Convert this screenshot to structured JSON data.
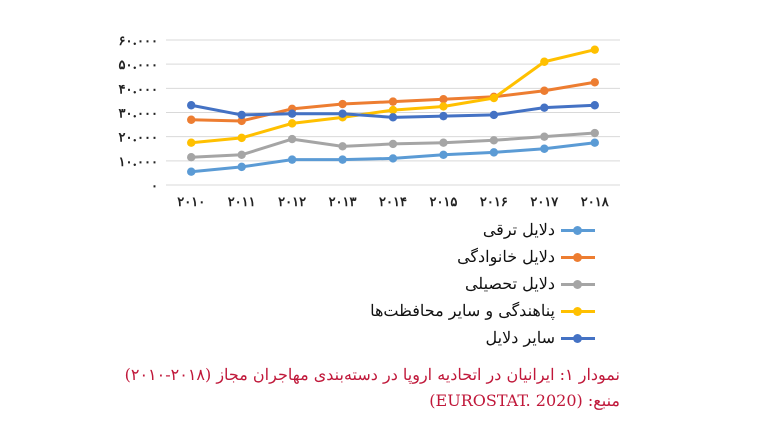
{
  "chart_data": {
    "type": "line",
    "x": [
      "۲۰۱۰",
      "۲۰۱۱",
      "۲۰۱۲",
      "۲۰۱۳",
      "۲۰۱۴",
      "۲۰۱۵",
      "۲۰۱۶",
      "۲۰۱۷",
      "۲۰۱۸"
    ],
    "y_ticks": [
      "۰",
      "۱۰.۰۰۰",
      "۲۰.۰۰۰",
      "۳۰.۰۰۰",
      "۴۰.۰۰۰",
      "۵۰.۰۰۰",
      "۶۰.۰۰۰"
    ],
    "ylim": [
      0,
      60000
    ],
    "grid": true,
    "legend_position": "bottom",
    "series": [
      {
        "name": "دلایل ترقی",
        "color": "#5b9bd5",
        "values": [
          5500,
          7500,
          10500,
          10500,
          11000,
          12500,
          13500,
          15000,
          17500
        ]
      },
      {
        "name": "دلایل خانوادگی",
        "color": "#ed7d31",
        "values": [
          27000,
          26500,
          31500,
          33500,
          34500,
          35500,
          36500,
          39000,
          42500
        ]
      },
      {
        "name": "دلایل تحصیلی",
        "color": "#a5a5a5",
        "values": [
          11500,
          12500,
          19000,
          16000,
          17000,
          17500,
          18500,
          20000,
          21500
        ]
      },
      {
        "name": "پناهندگی و سایر محافظت‌ها",
        "color": "#ffc000",
        "values": [
          17500,
          19500,
          25500,
          28000,
          31000,
          32500,
          36000,
          51000,
          56000
        ]
      },
      {
        "name": "سایر دلایل",
        "color": "#4472c4",
        "values": [
          33000,
          29000,
          29500,
          29500,
          28000,
          28500,
          29000,
          32000,
          33000
        ]
      }
    ]
  },
  "caption": {
    "line1": "نمودار ۱: ایرانیان در اتحادیه اروپا در دسته‌بندی مهاجران مجاز (۲۰۱۸-۲۰۱۰)",
    "line2": "منبع: (EUROSTAT. 2020)"
  }
}
